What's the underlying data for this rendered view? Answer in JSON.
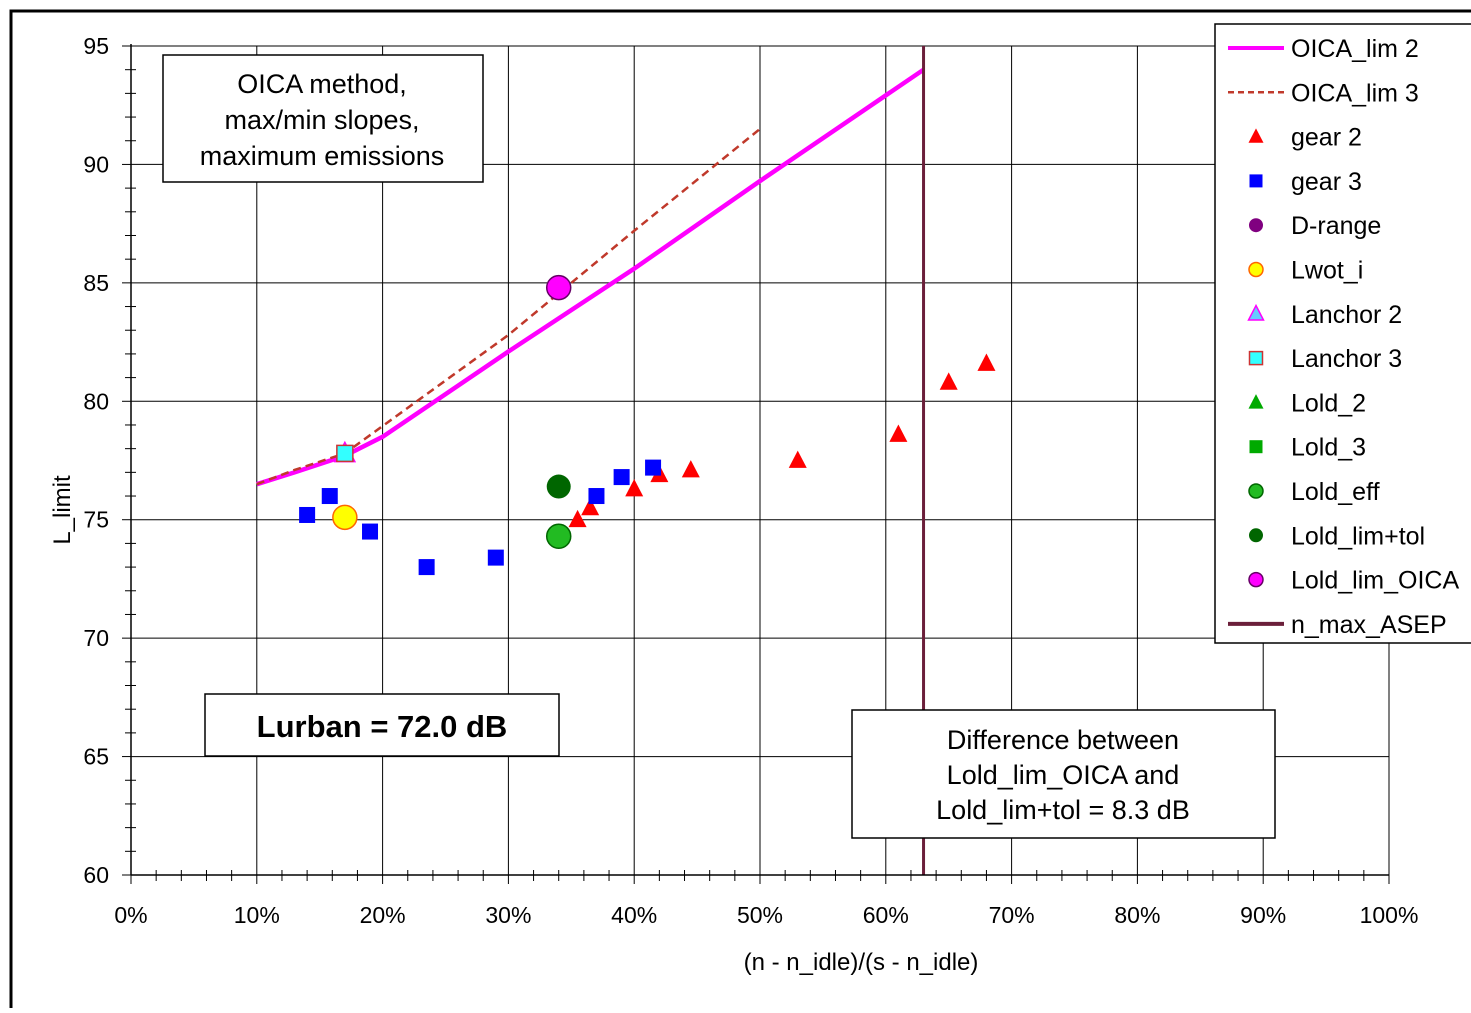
{
  "chart_data": {
    "type": "scatter",
    "title": "",
    "xlabel": "(n - n_idle)/(s - n_idle)",
    "ylabel": "L_limit",
    "xlim": [
      0,
      1
    ],
    "ylim": [
      60,
      95
    ],
    "grid": true,
    "x_ticks": [
      "0%",
      "10%",
      "20%",
      "30%",
      "40%",
      "50%",
      "60%",
      "70%",
      "80%",
      "90%",
      "100%"
    ],
    "y_ticks": [
      "60",
      "65",
      "70",
      "75",
      "80",
      "85",
      "90",
      "95"
    ],
    "legend_position": "top-right",
    "series": [
      {
        "name": "OICA_lim 2",
        "kind": "line",
        "color": "#ff00ff",
        "dash": false,
        "points": [
          [
            0.1,
            76.5
          ],
          [
            0.13,
            77.0
          ],
          [
            0.17,
            77.7
          ],
          [
            0.2,
            78.5
          ],
          [
            0.3,
            82.1
          ],
          [
            0.4,
            85.6
          ],
          [
            0.5,
            89.3
          ],
          [
            0.63,
            94.0
          ]
        ]
      },
      {
        "name": "OICA_lim 3",
        "kind": "line",
        "color": "#c0392b",
        "dash": true,
        "points": [
          [
            0.1,
            76.5
          ],
          [
            0.13,
            77.1
          ],
          [
            0.17,
            77.8
          ],
          [
            0.3,
            82.8
          ],
          [
            0.4,
            87.2
          ],
          [
            0.5,
            91.5
          ]
        ]
      },
      {
        "name": "gear 2",
        "kind": "marker",
        "marker": "triangle",
        "color": "#ff0000",
        "size": 9,
        "points": [
          [
            0.355,
            75.0
          ],
          [
            0.365,
            75.5
          ],
          [
            0.4,
            76.3
          ],
          [
            0.42,
            76.9
          ],
          [
            0.445,
            77.1
          ],
          [
            0.53,
            77.5
          ],
          [
            0.61,
            78.6
          ],
          [
            0.65,
            80.8
          ],
          [
            0.68,
            81.6
          ]
        ]
      },
      {
        "name": "gear 3",
        "kind": "marker",
        "marker": "square",
        "color": "#0000ff",
        "size": 8,
        "points": [
          [
            0.14,
            75.2
          ],
          [
            0.158,
            76.0
          ],
          [
            0.19,
            74.5
          ],
          [
            0.235,
            73.0
          ],
          [
            0.29,
            73.4
          ],
          [
            0.37,
            76.0
          ],
          [
            0.39,
            76.8
          ],
          [
            0.415,
            77.2
          ]
        ]
      },
      {
        "name": "D-range",
        "kind": "marker",
        "marker": "circle",
        "color": "#800080",
        "size": 7,
        "points": []
      },
      {
        "name": "Lwot_i",
        "kind": "marker",
        "marker": "circle",
        "color": "#ffff00",
        "stroke": "#ff6600",
        "size": 12,
        "points": [
          [
            0.17,
            75.1
          ]
        ]
      },
      {
        "name": "Lanchor 2",
        "kind": "marker",
        "marker": "triangle",
        "color": "#66ccff",
        "stroke": "#ff00ff",
        "size": 10,
        "points": [
          [
            0.17,
            77.8
          ]
        ]
      },
      {
        "name": "Lanchor 3",
        "kind": "marker",
        "marker": "square",
        "color": "#33ffff",
        "stroke": "#cc3333",
        "size": 8,
        "points": [
          [
            0.17,
            77.8
          ]
        ]
      },
      {
        "name": "Lold_2",
        "kind": "marker",
        "marker": "triangle",
        "color": "#00aa00",
        "size": 8,
        "points": []
      },
      {
        "name": "Lold_3",
        "kind": "marker",
        "marker": "square",
        "color": "#00aa00",
        "size": 7,
        "points": []
      },
      {
        "name": "Lold_eff",
        "kind": "marker",
        "marker": "circle",
        "color": "#22bb22",
        "stroke": "#006600",
        "size": 12,
        "points": [
          [
            0.34,
            74.3
          ]
        ]
      },
      {
        "name": "Lold_lim+tol",
        "kind": "marker",
        "marker": "circle",
        "color": "#006600",
        "size": 12,
        "points": [
          [
            0.34,
            76.4
          ]
        ]
      },
      {
        "name": "Lold_lim_OICA",
        "kind": "marker",
        "marker": "circle",
        "color": "#ff00ff",
        "stroke": "#660066",
        "size": 12,
        "points": [
          [
            0.34,
            84.8
          ]
        ]
      },
      {
        "name": "n_max_ASEP",
        "kind": "vline",
        "color": "#6b1f3a",
        "points": [
          [
            0.63,
            60
          ],
          [
            0.63,
            95
          ]
        ]
      }
    ],
    "annotations": {
      "method_box": [
        "OICA method,",
        "max/min slopes,",
        "maximum emissions"
      ],
      "lurban_box": "Lurban = 72.0 dB",
      "difference_box": [
        "Difference between",
        "Lold_lim_OICA and",
        "Lold_lim+tol = 8.3 dB"
      ]
    }
  }
}
